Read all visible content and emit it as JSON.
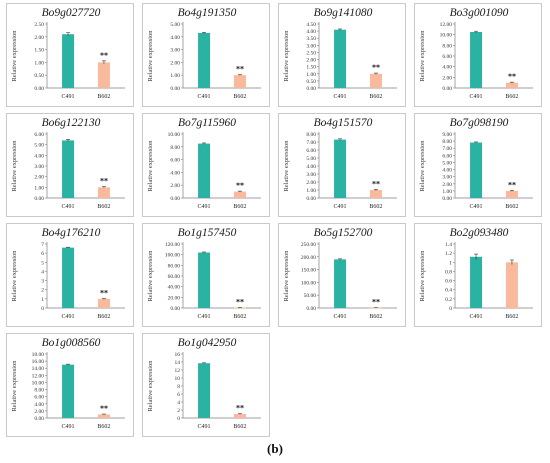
{
  "figure_label": "(b)",
  "colors": {
    "c491": "#2ab3a3",
    "b602": "#f8b99c",
    "axis": "#7f7f7f"
  },
  "chart_data": [
    {
      "type": "bar",
      "title": "Bo9g027720",
      "ylabel": "Relative expression",
      "categories": [
        "C491",
        "B602"
      ],
      "values": [
        2.1,
        1.0
      ],
      "errors": [
        0.06,
        0.06
      ],
      "yticks": [
        "0.00",
        "0.50",
        "1.00",
        "1.50",
        "2.00",
        "2.50"
      ],
      "ylim": [
        0,
        2.5
      ],
      "significance": [
        "",
        "**"
      ]
    },
    {
      "type": "bar",
      "title": "Bo4g191350",
      "ylabel": "Relative expression",
      "categories": [
        "C491",
        "B602"
      ],
      "values": [
        4.3,
        1.0
      ],
      "errors": [
        0.05,
        0.04
      ],
      "yticks": [
        "0.00",
        "1.00",
        "2.00",
        "3.00",
        "4.00",
        "5.00"
      ],
      "ylim": [
        0,
        5
      ],
      "significance": [
        "",
        "**"
      ]
    },
    {
      "type": "bar",
      "title": "Bo9g141080",
      "ylabel": "Relative expression",
      "categories": [
        "C491",
        "B602"
      ],
      "values": [
        4.1,
        1.0
      ],
      "errors": [
        0.05,
        0.05
      ],
      "yticks": [
        "0.00",
        "0.50",
        "1.00",
        "1.50",
        "2.00",
        "2.50",
        "3.00",
        "3.50",
        "4.00",
        "4.50"
      ],
      "ylim": [
        0,
        4.5
      ],
      "significance": [
        "",
        "**"
      ]
    },
    {
      "type": "bar",
      "title": "Bo3g001090",
      "ylabel": "Relative expression",
      "categories": [
        "C491",
        "B602"
      ],
      "values": [
        10.5,
        1.0
      ],
      "errors": [
        0.15,
        0.1
      ],
      "yticks": [
        "0.00",
        "2.00",
        "4.00",
        "6.00",
        "8.00",
        "10.00",
        "12.00"
      ],
      "ylim": [
        0,
        12
      ],
      "significance": [
        "",
        "**"
      ]
    },
    {
      "type": "bar",
      "title": "Bo6g122130",
      "ylabel": "Relative expression",
      "categories": [
        "C491",
        "B602"
      ],
      "values": [
        5.4,
        1.0
      ],
      "errors": [
        0.1,
        0.06
      ],
      "yticks": [
        "0.00",
        "1.00",
        "2.00",
        "3.00",
        "4.00",
        "5.00",
        "6.00"
      ],
      "ylim": [
        0,
        6
      ],
      "significance": [
        "",
        "**"
      ]
    },
    {
      "type": "bar",
      "title": "Bo7g115960",
      "ylabel": "Relative expression",
      "categories": [
        "C491",
        "B602"
      ],
      "values": [
        8.5,
        1.0
      ],
      "errors": [
        0.1,
        0.08
      ],
      "yticks": [
        "0.00",
        "2.00",
        "4.00",
        "6.00",
        "8.00",
        "10.00"
      ],
      "ylim": [
        0,
        10
      ],
      "significance": [
        "",
        "**"
      ]
    },
    {
      "type": "bar",
      "title": "Bo4g151570",
      "ylabel": "Relative expression",
      "categories": [
        "C491",
        "B602"
      ],
      "values": [
        7.3,
        1.0
      ],
      "errors": [
        0.1,
        0.08
      ],
      "yticks": [
        "0.00",
        "1.00",
        "2.00",
        "3.00",
        "4.00",
        "5.00",
        "6.00",
        "7.00",
        "8.00"
      ],
      "ylim": [
        0,
        8
      ],
      "significance": [
        "",
        "**"
      ]
    },
    {
      "type": "bar",
      "title": "Bo7g098190",
      "ylabel": "Relative expression",
      "categories": [
        "C491",
        "B602"
      ],
      "values": [
        7.8,
        1.0
      ],
      "errors": [
        0.08,
        0.06
      ],
      "yticks": [
        "0.00",
        "1.00",
        "2.00",
        "3.00",
        "4.00",
        "5.00",
        "6.00",
        "7.00",
        "8.00",
        "9.00"
      ],
      "ylim": [
        0,
        9
      ],
      "significance": [
        "",
        "**"
      ]
    },
    {
      "type": "bar",
      "title": "Bo4g176210",
      "ylabel": "Relative expression",
      "categories": [
        "C491",
        "B602"
      ],
      "values": [
        6.6,
        1.0
      ],
      "errors": [
        0.05,
        0.05
      ],
      "yticks": [
        "0",
        "1",
        "2",
        "3",
        "4",
        "5",
        "6",
        "7"
      ],
      "ylim": [
        0,
        7
      ],
      "significance": [
        "",
        "**"
      ]
    },
    {
      "type": "bar",
      "title": "Bo1g157450",
      "ylabel": "Relative expression",
      "categories": [
        "C491",
        "B602"
      ],
      "values": [
        104,
        1.0
      ],
      "errors": [
        1.0,
        0.2
      ],
      "yticks": [
        "0.00",
        "20.00",
        "40.00",
        "60.00",
        "80.00",
        "100.00",
        "120.00"
      ],
      "ylim": [
        0,
        120
      ],
      "significance": [
        "",
        "**"
      ]
    },
    {
      "type": "bar",
      "title": "Bo5g152700",
      "ylabel": "Relative expression",
      "categories": [
        "C491",
        "B602"
      ],
      "values": [
        190,
        1.0
      ],
      "errors": [
        2.0,
        0.3
      ],
      "yticks": [
        "0.00",
        "50.00",
        "100.00",
        "150.00",
        "200.00",
        "250.00"
      ],
      "ylim": [
        0,
        250
      ],
      "significance": [
        "",
        "**"
      ]
    },
    {
      "type": "bar",
      "title": "Bo2g093480",
      "ylabel": "Relative expression",
      "categories": [
        "C491",
        "B602"
      ],
      "values": [
        1.12,
        1.0
      ],
      "errors": [
        0.06,
        0.05
      ],
      "yticks": [
        "0",
        "0.2",
        "0.4",
        "0.6",
        "0.8",
        "1",
        "1.2",
        "1.4"
      ],
      "ylim": [
        0,
        1.4
      ],
      "significance": [
        "",
        ""
      ]
    },
    {
      "type": "bar",
      "title": "Bo1g008560",
      "ylabel": "Relative expression",
      "categories": [
        "C491",
        "B602"
      ],
      "values": [
        15.0,
        1.0
      ],
      "errors": [
        0.15,
        0.1
      ],
      "yticks": [
        "0.00",
        "2.00",
        "4.00",
        "6.00",
        "8.00",
        "10.00",
        "12.00",
        "14.00",
        "16.00",
        "18.00"
      ],
      "ylim": [
        0,
        18
      ],
      "significance": [
        "",
        "**"
      ]
    },
    {
      "type": "bar",
      "title": "Bo1g042950",
      "ylabel": "Relative expression",
      "categories": [
        "C491",
        "B602"
      ],
      "values": [
        13.7,
        1.0
      ],
      "errors": [
        0.1,
        0.08
      ],
      "yticks": [
        "0",
        "2",
        "4",
        "6",
        "8",
        "10",
        "12",
        "14",
        "16"
      ],
      "ylim": [
        0,
        16
      ],
      "significance": [
        "",
        "**"
      ]
    }
  ]
}
